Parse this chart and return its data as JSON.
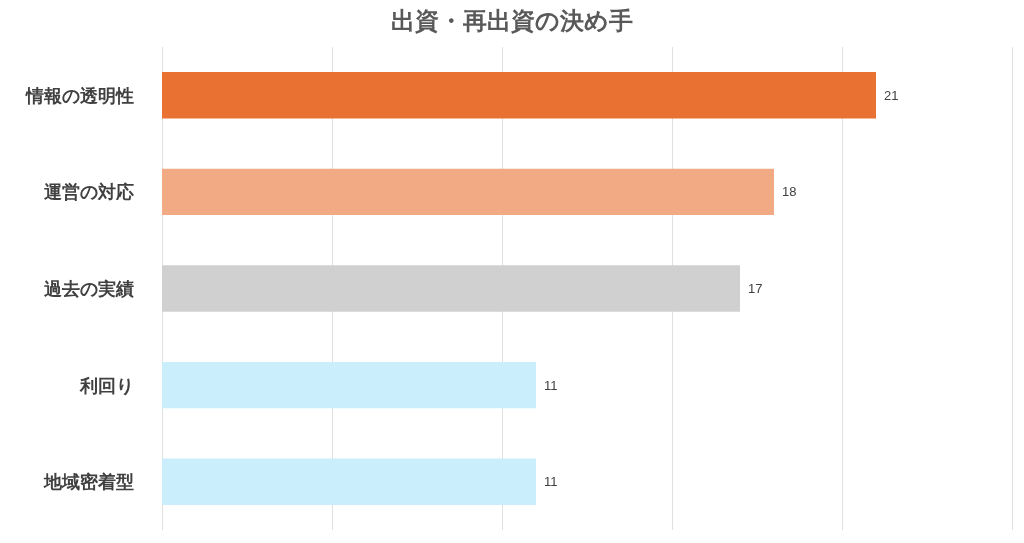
{
  "chart_data": {
    "type": "bar",
    "orientation": "horizontal",
    "title": "出資・再出資の決め手",
    "categories": [
      "情報の透明性",
      "運営の対応",
      "過去の実績",
      "利回り",
      "地域密着型"
    ],
    "values": [
      21,
      18,
      17,
      11,
      11
    ],
    "colors": [
      "#e97132",
      "#f2aa84",
      "#d0d0d0",
      "#caeefb",
      "#caeefb"
    ],
    "xlim": [
      0,
      25
    ],
    "xticks": [
      {
        "value": 0,
        "label": null
      },
      {
        "value": 5,
        "label": null
      },
      {
        "value": 10,
        "label": null
      },
      {
        "value": 15,
        "label": null
      },
      {
        "value": 20,
        "label": null
      },
      {
        "value": 25,
        "label": null
      }
    ],
    "tick_labels": "y",
    "grid": "x",
    "data_labels": true
  }
}
